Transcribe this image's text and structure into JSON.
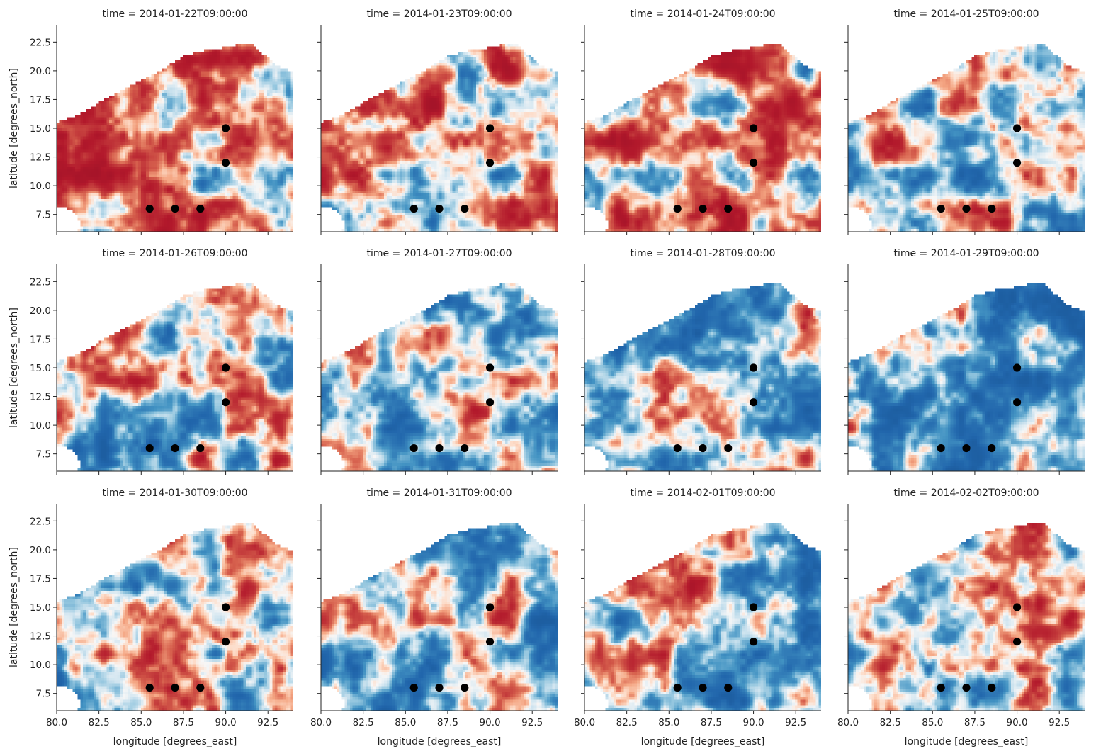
{
  "chart_data": {
    "type": "heatmap",
    "layout": "facet-grid",
    "rows": 3,
    "cols": 4,
    "facet_titles": [
      "time = 2014-01-22T09:00:00",
      "time = 2014-01-23T09:00:00",
      "time = 2014-01-24T09:00:00",
      "time = 2014-01-25T09:00:00",
      "time = 2014-01-26T09:00:00",
      "time = 2014-01-27T09:00:00",
      "time = 2014-01-28T09:00:00",
      "time = 2014-01-29T09:00:00",
      "time = 2014-01-30T09:00:00",
      "time = 2014-01-31T09:00:00",
      "time = 2014-02-01T09:00:00",
      "time = 2014-02-02T09:00:00"
    ],
    "xlabel": "longitude [degrees_east]",
    "ylabel": "latitude [degrees_north]",
    "xlim": [
      80.0,
      94.0
    ],
    "ylim": [
      6.0,
      24.0
    ],
    "xticks": [
      80.0,
      82.5,
      85.0,
      87.5,
      90.0,
      92.5
    ],
    "xtick_labels": [
      "80.0",
      "82.5",
      "85.0",
      "87.5",
      "90.0",
      "92.5"
    ],
    "yticks": [
      7.5,
      10.0,
      12.5,
      15.0,
      17.5,
      20.0,
      22.5
    ],
    "ytick_labels": [
      "7.5",
      "10.0",
      "12.5",
      "15.0",
      "17.5",
      "20.0",
      "22.5"
    ],
    "colormap": "RdBu_r",
    "colors": {
      "low": "#053061",
      "mid": "#f7f7f7",
      "high": "#67001f",
      "marker": "#000000"
    },
    "stations": [
      {
        "lon": 90.0,
        "lat": 15.0
      },
      {
        "lon": 90.0,
        "lat": 12.0
      },
      {
        "lon": 85.5,
        "lat": 8.0
      },
      {
        "lon": 87.0,
        "lat": 8.0
      },
      {
        "lon": 88.5,
        "lat": 8.0
      }
    ],
    "panel_bias": [
      0.35,
      0.3,
      0.25,
      0.05,
      0.0,
      -0.05,
      -0.2,
      -0.4,
      -0.1,
      -0.15,
      -0.05,
      0.0
    ]
  }
}
